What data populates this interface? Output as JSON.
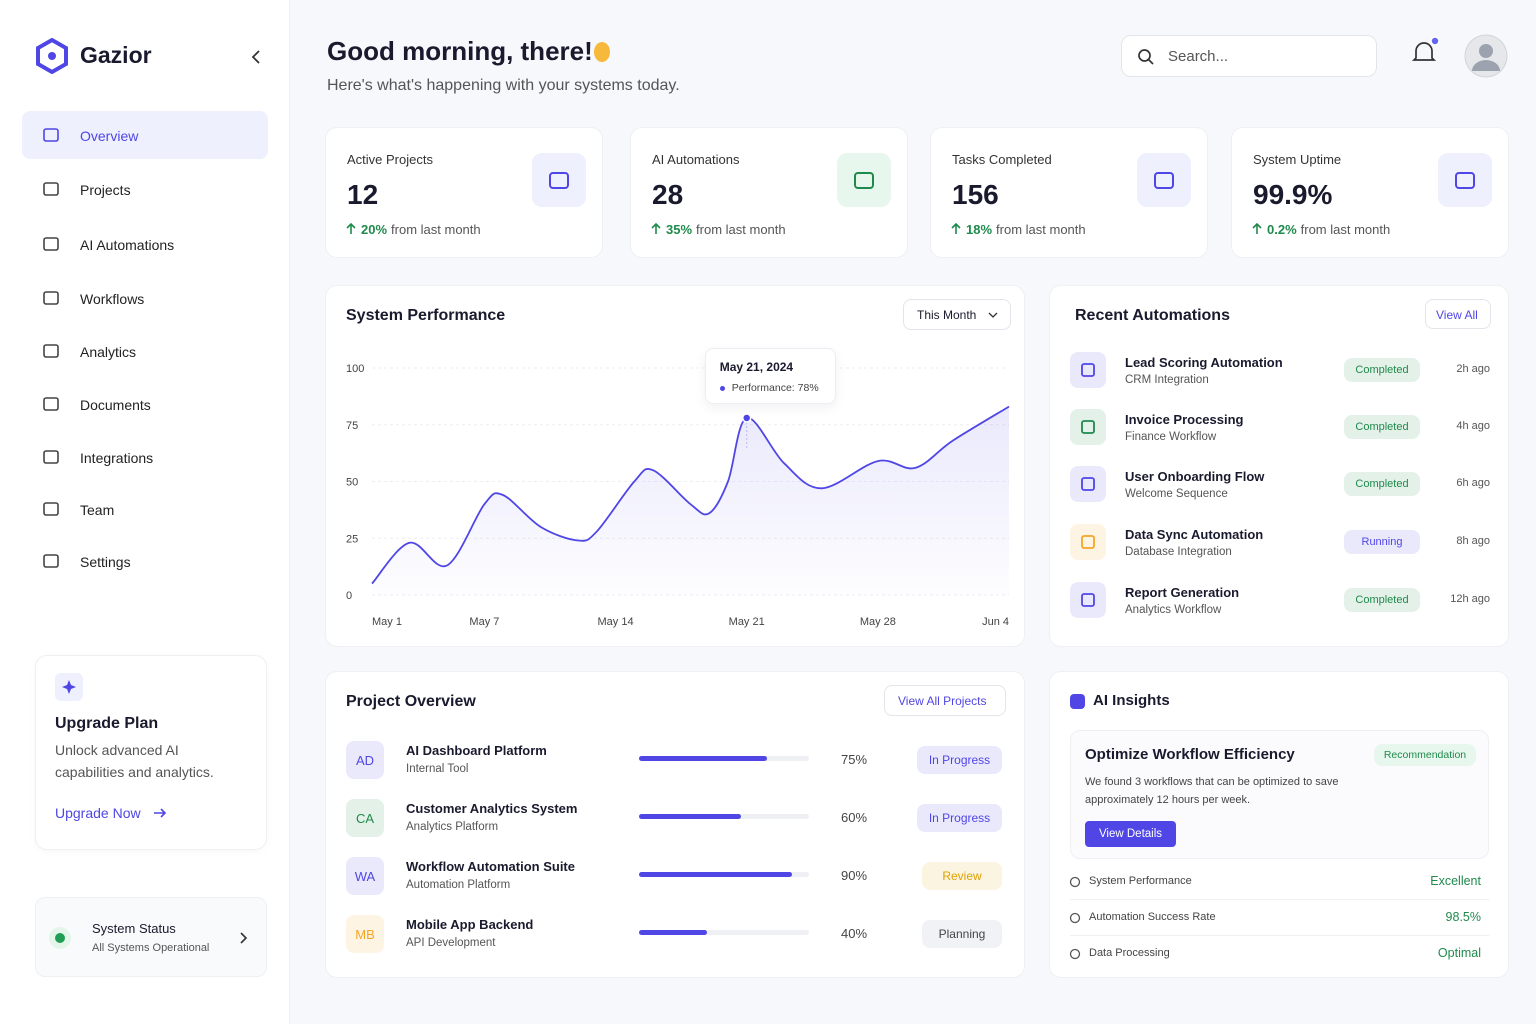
{
  "sidebar": {
    "brand": "Gazior",
    "nav": [
      "Overview",
      "Projects",
      "AI Automations",
      "Workflows",
      "Analytics",
      "Documents",
      "Integrations",
      "Team",
      "Settings"
    ],
    "upgrade": {
      "title": "Upgrade Plan",
      "text": "Unlock advanced AI capabilities and analytics.",
      "link": "Upgrade Now"
    },
    "status": {
      "title": "System Status",
      "text": "All Systems Operational"
    }
  },
  "header": {
    "greeting": "Good morning, there!",
    "subtitle": "Here's what's happening with your systems today.",
    "search": "Search..."
  },
  "stats": [
    {
      "label": "Active Projects",
      "value": "12",
      "change": "20%",
      "note": "from last month"
    },
    {
      "label": "AI Automations",
      "value": "28",
      "change": "35%",
      "note": "from last month"
    },
    {
      "label": "Tasks Completed",
      "value": "156",
      "change": "18%",
      "note": "from last month"
    },
    {
      "label": "System Uptime",
      "value": "99.9%",
      "change": "0.2%",
      "note": "from last month"
    }
  ],
  "performance": {
    "title": "System Performance",
    "period": "This Month"
  },
  "chart_data": {
    "type": "line",
    "x": [
      1,
      3,
      5,
      7,
      8,
      10,
      12,
      13,
      15,
      16,
      18,
      19,
      20,
      21,
      23,
      25,
      28,
      30,
      32,
      35
    ],
    "series": [
      {
        "name": "Performance",
        "color": "#4f46e5",
        "values": [
          5,
          23,
          13,
          40,
          44,
          30,
          24,
          28,
          50,
          55,
          40,
          36,
          50,
          78,
          58,
          47,
          59,
          56,
          68,
          83
        ]
      }
    ],
    "xlim": [
      1,
      35
    ],
    "xticks": [
      {
        "value": 1,
        "label": "May 1"
      },
      {
        "value": 7,
        "label": "May 7"
      },
      {
        "value": 14,
        "label": "May 14"
      },
      {
        "value": 21,
        "label": "May 21"
      },
      {
        "value": 28,
        "label": "May 28"
      },
      {
        "value": 35,
        "label": "Jun 4"
      }
    ],
    "ylim": [
      0,
      100
    ],
    "yticks": [
      0,
      25,
      50,
      75,
      100
    ],
    "grid": true,
    "tooltip": {
      "date": "May 21, 2024",
      "text": "Performance: 78%"
    }
  },
  "recent": {
    "title": "Recent Automations",
    "link": "View All",
    "items": [
      {
        "name": "Lead Scoring Automation",
        "sub": "CRM Integration",
        "status": "Completed",
        "time": "2h ago",
        "color": "#4f46e5",
        "status_color": "#1f8a4c"
      },
      {
        "name": "Invoice Processing",
        "sub": "Finance Workflow",
        "status": "Completed",
        "time": "4h ago",
        "color": "#1f8a4c",
        "status_color": "#1f8a4c"
      },
      {
        "name": "User Onboarding Flow",
        "sub": "Welcome Sequence",
        "status": "Completed",
        "time": "6h ago",
        "color": "#4f46e5",
        "status_color": "#1f8a4c"
      },
      {
        "name": "Data Sync Automation",
        "sub": "Database Integration",
        "status": "Running",
        "time": "8h ago",
        "color": "#f5a524",
        "status_color": "#4f46e5"
      },
      {
        "name": "Report Generation",
        "sub": "Analytics Workflow",
        "status": "Completed",
        "time": "12h ago",
        "color": "#4f46e5",
        "status_color": "#1f8a4c"
      }
    ]
  },
  "projects": {
    "title": "Project Overview",
    "link": "View All Projects",
    "rows": [
      {
        "initials": "AD",
        "name": "AI Dashboard Platform",
        "sub": "Internal Tool",
        "progress": 75,
        "progress_label": "75%",
        "status": "In Progress",
        "color": "#4f46e5",
        "status_color": "#4f46e5"
      },
      {
        "initials": "CA",
        "name": "Customer Analytics System",
        "sub": "Analytics Platform",
        "progress": 60,
        "progress_label": "60%",
        "status": "In Progress",
        "color": "#1f8a4c",
        "status_color": "#4f46e5"
      },
      {
        "initials": "WA",
        "name": "Workflow Automation Suite",
        "sub": "Automation Platform",
        "progress": 90,
        "progress_label": "90%",
        "status": "Review",
        "color": "#4f46e5",
        "status_color": "#e0a100"
      },
      {
        "initials": "MB",
        "name": "Mobile App Backend",
        "sub": "API Development",
        "progress": 40,
        "progress_label": "40%",
        "status": "Planning",
        "color": "#f5a524",
        "status_color": "#444444"
      }
    ]
  },
  "insights": {
    "title": "AI Insights",
    "card": {
      "title": "Optimize Workflow Efficiency",
      "badge": "Recommendation",
      "text": "We found 3 workflows that can be optimized to save approximately 12 hours per week.",
      "button": "View Details"
    },
    "metrics": [
      {
        "label": "System Performance",
        "value": "Excellent"
      },
      {
        "label": "Automation Success Rate",
        "value": "98.5%"
      },
      {
        "label": "Data Processing",
        "value": "Optimal"
      }
    ]
  }
}
